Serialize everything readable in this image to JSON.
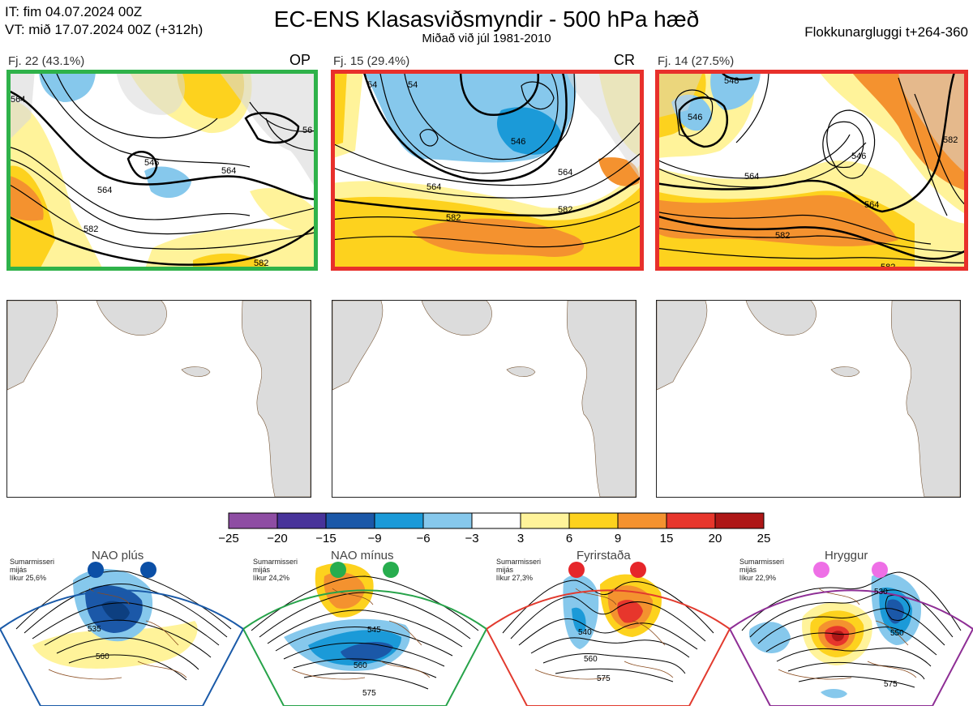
{
  "header": {
    "it_line": "IT: fim 04.07.2024 00Z",
    "vt_line": "VT: mið 17.07.2024 00Z  (+312h)",
    "title": "EC-ENS Klasasviðsmyndir - 500 hPa hæð",
    "subtitle": "Miðað við júl 1981-2010",
    "window": "Flokkunargluggi t+264-360"
  },
  "clusters": [
    {
      "label": "Fj. 22 (43.1%)",
      "tag": "OP",
      "border_color": "#2fb24a",
      "contour_labels": [
        "564",
        "546",
        "564",
        "564",
        "582",
        "582",
        "56"
      ]
    },
    {
      "label": "Fj. 15 (29.4%)",
      "tag": "CR",
      "border_color": "#e8302b",
      "contour_labels": [
        "54",
        "54",
        "546",
        "564",
        "582",
        "582",
        "564"
      ]
    },
    {
      "label": "Fj. 14 (27.5%)",
      "tag": "",
      "border_color": "#e8302b",
      "contour_labels": [
        "548",
        "546",
        "546",
        "564",
        "564",
        "582",
        "582",
        "582"
      ]
    }
  ],
  "colorbar": {
    "ticks": [
      "−25",
      "−20",
      "−15",
      "−9",
      "−6",
      "−3",
      "3",
      "6",
      "9",
      "15",
      "20",
      "25"
    ],
    "colors": [
      "#8e4da3",
      "#48339a",
      "#1b58a8",
      "#1b9ad8",
      "#86c8ec",
      "#ffffff",
      "#fff39a",
      "#fdd21e",
      "#f4922f",
      "#e7362c",
      "#ae1717"
    ]
  },
  "regimes": [
    {
      "name": "NAO plús",
      "info": [
        "Sumarmisseri",
        "mijás",
        "líkur 25,6%"
      ],
      "dot_color": "#0b4fa6",
      "border_color": "#1a5aa8",
      "contour_labels": [
        "535",
        "560"
      ]
    },
    {
      "name": "NAO mínus",
      "info": [
        "Sumarmisseri",
        "mijás",
        "líkur 24,2%"
      ],
      "dot_color": "#27ad4e",
      "border_color": "#27a34a",
      "contour_labels": [
        "545",
        "560",
        "575"
      ]
    },
    {
      "name": "Fyrirstaða",
      "info": [
        "Sumarmisseri",
        "mijás",
        "líkur 27,3%"
      ],
      "dot_color": "#e6262a",
      "border_color": "#e23a2e",
      "contour_labels": [
        "540",
        "560",
        "575"
      ]
    },
    {
      "name": "Hryggur",
      "info": [
        "Sumarmisseri",
        "mijás",
        "líkur 22,9%"
      ],
      "dot_color": "#ee6fe6",
      "border_color": "#8e2e95",
      "contour_labels": [
        "530",
        "550",
        "575"
      ]
    }
  ]
}
